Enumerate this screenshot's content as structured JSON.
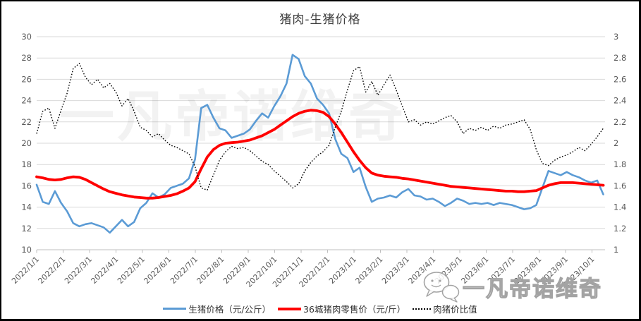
{
  "title": "猪肉-生猪价格",
  "watermark_center": "一凡帝诺维奇",
  "watermark_corner": {
    "text": "一凡帝诺维奇",
    "icon": "chat-bubbles-icon"
  },
  "colors": {
    "pig_price_line": "#5B9BD5",
    "pork_retail_line": "#FF0000",
    "ratio_line": "#000000",
    "gridline": "#D9D9D9",
    "axis_line": "#BFBFBF",
    "axis_text": "#595959",
    "title_text": "#3F3F3F",
    "frame_border": "#000000"
  },
  "chart_data": {
    "type": "line",
    "title": "猪肉-生猪价格",
    "grid": "horizontal",
    "legend_position": "bottom",
    "y_left": {
      "min": 10,
      "max": 30,
      "step": 2,
      "tick_labels": [
        "10",
        "12",
        "14",
        "16",
        "18",
        "20",
        "22",
        "24",
        "26",
        "28",
        "30"
      ]
    },
    "y_right": {
      "min": 1,
      "max": 3,
      "step": 0.2,
      "tick_labels": [
        "1",
        "1.2",
        "1.4",
        "1.6",
        "1.8",
        "2",
        "2.2",
        "2.4",
        "2.6",
        "2.8",
        "3"
      ]
    },
    "x_tick_labels": [
      "2022/1/1",
      "2022/2/1",
      "2022/3/1",
      "2022/4/1",
      "2022/5/1",
      "2022/6/1",
      "2022/7/1",
      "2022/8/1",
      "2022/9/1",
      "2022/10/1",
      "2022/11/1",
      "2022/12/1",
      "2023/1/1",
      "2023/2/1",
      "2023/3/1",
      "2023/4/1",
      "2023/5/1",
      "2023/6/1",
      "2023/7/1",
      "2023/8/1",
      "2023/9/1",
      "2023/10/1"
    ],
    "x": [
      "2022/1/1",
      "2022/1/8",
      "2022/1/15",
      "2022/1/22",
      "2022/1/29",
      "2022/2/5",
      "2022/2/12",
      "2022/2/19",
      "2022/2/26",
      "2022/3/5",
      "2022/3/12",
      "2022/3/19",
      "2022/3/26",
      "2022/4/2",
      "2022/4/9",
      "2022/4/16",
      "2022/4/23",
      "2022/4/30",
      "2022/5/7",
      "2022/5/14",
      "2022/5/21",
      "2022/5/28",
      "2022/6/4",
      "2022/6/11",
      "2022/6/18",
      "2022/6/25",
      "2022/7/2",
      "2022/7/9",
      "2022/7/16",
      "2022/7/23",
      "2022/7/30",
      "2022/8/6",
      "2022/8/13",
      "2022/8/20",
      "2022/8/27",
      "2022/9/3",
      "2022/9/10",
      "2022/9/17",
      "2022/9/24",
      "2022/10/1",
      "2022/10/8",
      "2022/10/15",
      "2022/10/22",
      "2022/10/29",
      "2022/11/5",
      "2022/11/12",
      "2022/11/19",
      "2022/11/26",
      "2022/12/3",
      "2022/12/10",
      "2022/12/17",
      "2022/12/24",
      "2022/12/31",
      "2023/1/7",
      "2023/1/14",
      "2023/1/21",
      "2023/1/28",
      "2023/2/4",
      "2023/2/11",
      "2023/2/18",
      "2023/2/25",
      "2023/3/4",
      "2023/3/11",
      "2023/3/18",
      "2023/3/25",
      "2023/4/1",
      "2023/4/8",
      "2023/4/15",
      "2023/4/22",
      "2023/4/29",
      "2023/5/6",
      "2023/5/13",
      "2023/5/20",
      "2023/5/27",
      "2023/6/3",
      "2023/6/10",
      "2023/6/17",
      "2023/6/24",
      "2023/7/1",
      "2023/7/8",
      "2023/7/15",
      "2023/7/22",
      "2023/7/29",
      "2023/8/5",
      "2023/8/12",
      "2023/8/19",
      "2023/8/26",
      "2023/9/2",
      "2023/9/9",
      "2023/9/16",
      "2023/9/23",
      "2023/9/30",
      "2023/10/7",
      "2023/10/14"
    ],
    "series": [
      {
        "name": "生猪价格（元/公斤）",
        "axis": "left",
        "color": "#5B9BD5",
        "style": "solid",
        "width": 2.6,
        "values": [
          16.1,
          14.5,
          14.3,
          15.5,
          14.4,
          13.6,
          12.5,
          12.2,
          12.4,
          12.5,
          12.3,
          12.1,
          11.6,
          12.2,
          12.8,
          12.2,
          12.6,
          13.9,
          14.4,
          15.3,
          14.9,
          15.2,
          15.8,
          16.0,
          16.2,
          16.7,
          18.5,
          23.3,
          23.6,
          22.4,
          21.4,
          21.2,
          20.5,
          20.7,
          20.9,
          21.3,
          22.1,
          22.8,
          22.4,
          23.5,
          24.4,
          25.6,
          28.3,
          27.9,
          26.3,
          25.6,
          24.2,
          23.6,
          22.8,
          20.4,
          19.0,
          18.6,
          17.3,
          17.7,
          15.9,
          14.5,
          14.8,
          14.9,
          15.1,
          14.9,
          15.4,
          15.7,
          15.1,
          15.0,
          14.7,
          14.8,
          14.5,
          14.1,
          14.4,
          14.8,
          14.6,
          14.3,
          14.4,
          14.3,
          14.4,
          14.2,
          14.4,
          14.3,
          14.2,
          14.0,
          13.8,
          13.9,
          14.2,
          15.8,
          17.4,
          17.2,
          17.0,
          17.3,
          17.0,
          16.8,
          16.5,
          16.3,
          16.5,
          15.2
        ]
      },
      {
        "name": "36城猪肉零售价（元/斤）",
        "axis": "left",
        "color": "#FF0000",
        "style": "solid",
        "width": 3.8,
        "values": [
          16.85,
          16.75,
          16.6,
          16.55,
          16.6,
          16.75,
          16.85,
          16.8,
          16.6,
          16.3,
          16.0,
          15.7,
          15.45,
          15.3,
          15.15,
          15.05,
          14.95,
          14.9,
          14.85,
          14.85,
          14.9,
          15.0,
          15.1,
          15.25,
          15.5,
          15.8,
          16.4,
          17.6,
          18.7,
          19.4,
          19.8,
          20.0,
          20.05,
          20.1,
          20.2,
          20.3,
          20.5,
          20.7,
          21.0,
          21.3,
          21.7,
          22.1,
          22.5,
          22.8,
          23.0,
          23.1,
          23.05,
          22.9,
          22.5,
          21.8,
          21.0,
          20.1,
          19.2,
          18.4,
          17.7,
          17.2,
          17.0,
          16.9,
          16.85,
          16.8,
          16.7,
          16.65,
          16.55,
          16.45,
          16.35,
          16.25,
          16.15,
          16.05,
          15.95,
          15.9,
          15.85,
          15.8,
          15.75,
          15.7,
          15.65,
          15.6,
          15.55,
          15.5,
          15.5,
          15.45,
          15.45,
          15.5,
          15.55,
          15.8,
          16.05,
          16.2,
          16.3,
          16.3,
          16.3,
          16.25,
          16.2,
          16.15,
          16.1,
          16.05
        ]
      },
      {
        "name": "肉猪价比值",
        "axis": "right",
        "color": "#000000",
        "style": "dotted",
        "width": 1.4,
        "values": [
          2.09,
          2.3,
          2.33,
          2.14,
          2.31,
          2.47,
          2.7,
          2.75,
          2.62,
          2.55,
          2.6,
          2.52,
          2.56,
          2.48,
          2.35,
          2.42,
          2.3,
          2.15,
          2.12,
          2.06,
          2.09,
          2.03,
          1.98,
          1.96,
          1.93,
          1.9,
          1.78,
          1.58,
          1.56,
          1.7,
          1.84,
          1.92,
          1.97,
          1.95,
          1.96,
          1.93,
          1.88,
          1.83,
          1.8,
          1.74,
          1.69,
          1.64,
          1.58,
          1.62,
          1.74,
          1.82,
          1.88,
          1.92,
          1.98,
          2.15,
          2.3,
          2.5,
          2.68,
          2.72,
          2.48,
          2.58,
          2.45,
          2.55,
          2.64,
          2.5,
          2.35,
          2.2,
          2.22,
          2.17,
          2.2,
          2.18,
          2.21,
          2.24,
          2.26,
          2.2,
          2.09,
          2.14,
          2.12,
          2.15,
          2.12,
          2.16,
          2.14,
          2.17,
          2.18,
          2.2,
          2.22,
          2.13,
          1.94,
          1.81,
          1.79,
          1.84,
          1.87,
          1.89,
          1.92,
          1.96,
          1.93,
          1.99,
          2.06,
          2.14
        ]
      }
    ]
  }
}
